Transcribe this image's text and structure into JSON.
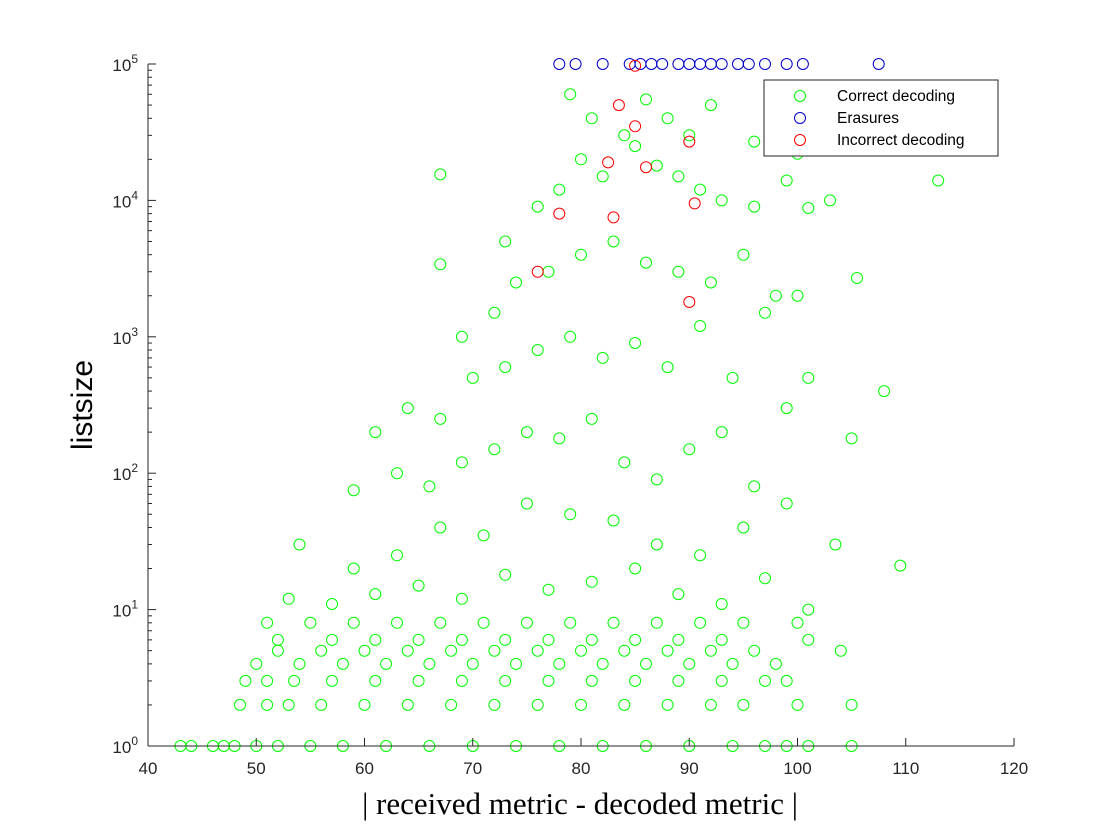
{
  "chart_data": {
    "type": "scatter",
    "title": "",
    "xlabel": "| received metric - decoded metric |",
    "ylabel": "listsize",
    "xlim": [
      40,
      120
    ],
    "ylim": [
      1,
      100000
    ],
    "yscale": "log",
    "grid": false,
    "x_ticks": [
      40,
      50,
      60,
      70,
      80,
      90,
      100,
      110,
      120
    ],
    "y_ticks": [
      {
        "base": "10",
        "exp": "0",
        "value": 1
      },
      {
        "base": "10",
        "exp": "1",
        "value": 10
      },
      {
        "base": "10",
        "exp": "2",
        "value": 100
      },
      {
        "base": "10",
        "exp": "3",
        "value": 1000
      },
      {
        "base": "10",
        "exp": "4",
        "value": 10000
      },
      {
        "base": "10",
        "exp": "5",
        "value": 100000
      }
    ],
    "legend_position": "top-right",
    "series": [
      {
        "name": "Correct decoding",
        "color": "#00ff00",
        "marker": "circle-open",
        "points": [
          [
            43,
            1
          ],
          [
            44,
            1
          ],
          [
            46,
            1
          ],
          [
            47,
            1
          ],
          [
            48,
            1
          ],
          [
            50,
            1
          ],
          [
            52,
            1
          ],
          [
            55,
            1
          ],
          [
            58,
            1
          ],
          [
            62,
            1
          ],
          [
            66,
            1
          ],
          [
            70,
            1
          ],
          [
            74,
            1
          ],
          [
            78,
            1
          ],
          [
            82,
            1
          ],
          [
            86,
            1
          ],
          [
            90,
            1
          ],
          [
            94,
            1
          ],
          [
            97,
            1
          ],
          [
            99,
            1
          ],
          [
            101,
            1
          ],
          [
            105,
            1
          ],
          [
            48.5,
            2
          ],
          [
            51,
            2
          ],
          [
            53,
            2
          ],
          [
            56,
            2
          ],
          [
            60,
            2
          ],
          [
            64,
            2
          ],
          [
            68,
            2
          ],
          [
            72,
            2
          ],
          [
            76,
            2
          ],
          [
            80,
            2
          ],
          [
            84,
            2
          ],
          [
            88,
            2
          ],
          [
            92,
            2
          ],
          [
            95,
            2
          ],
          [
            100,
            2
          ],
          [
            105,
            2
          ],
          [
            49,
            3
          ],
          [
            51,
            3
          ],
          [
            53.5,
            3
          ],
          [
            57,
            3
          ],
          [
            61,
            3
          ],
          [
            65,
            3
          ],
          [
            69,
            3
          ],
          [
            73,
            3
          ],
          [
            77,
            3
          ],
          [
            81,
            3
          ],
          [
            85,
            3
          ],
          [
            89,
            3
          ],
          [
            93,
            3
          ],
          [
            97,
            3
          ],
          [
            99,
            3
          ],
          [
            50,
            4
          ],
          [
            54,
            4
          ],
          [
            58,
            4
          ],
          [
            62,
            4
          ],
          [
            66,
            4
          ],
          [
            70,
            4
          ],
          [
            74,
            4
          ],
          [
            78,
            4
          ],
          [
            82,
            4
          ],
          [
            86,
            4
          ],
          [
            90,
            4
          ],
          [
            94,
            4
          ],
          [
            98,
            4
          ],
          [
            52,
            5
          ],
          [
            56,
            5
          ],
          [
            60,
            5
          ],
          [
            64,
            5
          ],
          [
            68,
            5
          ],
          [
            72,
            5
          ],
          [
            76,
            5
          ],
          [
            80,
            5
          ],
          [
            84,
            5
          ],
          [
            88,
            5
          ],
          [
            92,
            5
          ],
          [
            96,
            5
          ],
          [
            104,
            5
          ],
          [
            52,
            6
          ],
          [
            57,
            6
          ],
          [
            61,
            6
          ],
          [
            65,
            6
          ],
          [
            69,
            6
          ],
          [
            73,
            6
          ],
          [
            77,
            6
          ],
          [
            81,
            6
          ],
          [
            85,
            6
          ],
          [
            89,
            6
          ],
          [
            93,
            6
          ],
          [
            101,
            6
          ],
          [
            51,
            8
          ],
          [
            55,
            8
          ],
          [
            59,
            8
          ],
          [
            63,
            8
          ],
          [
            67,
            8
          ],
          [
            71,
            8
          ],
          [
            75,
            8
          ],
          [
            79,
            8
          ],
          [
            83,
            8
          ],
          [
            87,
            8
          ],
          [
            91,
            8
          ],
          [
            95,
            8
          ],
          [
            100,
            8
          ],
          [
            53,
            12
          ],
          [
            57,
            11
          ],
          [
            61,
            13
          ],
          [
            65,
            15
          ],
          [
            69,
            12
          ],
          [
            73,
            18
          ],
          [
            77,
            14
          ],
          [
            81,
            16
          ],
          [
            85,
            20
          ],
          [
            89,
            13
          ],
          [
            93,
            11
          ],
          [
            97,
            17
          ],
          [
            101,
            10
          ],
          [
            54,
            30
          ],
          [
            59,
            20
          ],
          [
            63,
            25
          ],
          [
            67,
            40
          ],
          [
            71,
            35
          ],
          [
            75,
            60
          ],
          [
            79,
            50
          ],
          [
            83,
            45
          ],
          [
            87,
            30
          ],
          [
            91,
            25
          ],
          [
            95,
            40
          ],
          [
            99,
            60
          ],
          [
            103.5,
            30
          ],
          [
            109.5,
            21
          ],
          [
            59,
            75
          ],
          [
            63,
            100
          ],
          [
            66,
            80
          ],
          [
            69,
            120
          ],
          [
            72,
            150
          ],
          [
            75,
            200
          ],
          [
            78,
            180
          ],
          [
            81,
            250
          ],
          [
            84,
            120
          ],
          [
            87,
            90
          ],
          [
            90,
            150
          ],
          [
            93,
            200
          ],
          [
            96,
            80
          ],
          [
            99,
            300
          ],
          [
            105,
            180
          ],
          [
            61,
            200
          ],
          [
            64,
            300
          ],
          [
            67,
            250
          ],
          [
            70,
            500
          ],
          [
            73,
            600
          ],
          [
            76,
            800
          ],
          [
            79,
            1000
          ],
          [
            82,
            700
          ],
          [
            85,
            900
          ],
          [
            88,
            600
          ],
          [
            91,
            1200
          ],
          [
            94,
            500
          ],
          [
            97,
            1500
          ],
          [
            101,
            500
          ],
          [
            108,
            400
          ],
          [
            67,
            3400
          ],
          [
            69,
            1000
          ],
          [
            72,
            1500
          ],
          [
            74,
            2500
          ],
          [
            77,
            3000
          ],
          [
            80,
            4000
          ],
          [
            83,
            5000
          ],
          [
            86,
            3500
          ],
          [
            89,
            3000
          ],
          [
            92,
            2500
          ],
          [
            95,
            4000
          ],
          [
            98,
            2000
          ],
          [
            100,
            2000
          ],
          [
            105.5,
            2700
          ],
          [
            67,
            15500
          ],
          [
            73,
            5000
          ],
          [
            76,
            9000
          ],
          [
            78,
            12000
          ],
          [
            80,
            20000
          ],
          [
            82,
            15000
          ],
          [
            85,
            25000
          ],
          [
            87,
            18000
          ],
          [
            89,
            15000
          ],
          [
            91,
            12000
          ],
          [
            93,
            10000
          ],
          [
            96,
            9000
          ],
          [
            99,
            14000
          ],
          [
            101,
            8800
          ],
          [
            103,
            10000
          ],
          [
            79,
            60000
          ],
          [
            81,
            40000
          ],
          [
            84,
            30000
          ],
          [
            86,
            55000
          ],
          [
            88,
            40000
          ],
          [
            90,
            30000
          ],
          [
            92,
            50000
          ],
          [
            96,
            27000
          ],
          [
            100,
            22000
          ],
          [
            113,
            14000
          ]
        ]
      },
      {
        "name": "Erasures",
        "color": "#0000cc",
        "marker": "circle-open",
        "points": [
          [
            78,
            100000
          ],
          [
            79.5,
            100000
          ],
          [
            82,
            100000
          ],
          [
            84.5,
            100000
          ],
          [
            85.5,
            100000
          ],
          [
            86.5,
            100000
          ],
          [
            87.5,
            100000
          ],
          [
            89,
            100000
          ],
          [
            90,
            100000
          ],
          [
            91,
            100000
          ],
          [
            92,
            100000
          ],
          [
            93,
            100000
          ],
          [
            94.5,
            100000
          ],
          [
            95.5,
            100000
          ],
          [
            97,
            100000
          ],
          [
            99,
            100000
          ],
          [
            100.5,
            100000
          ],
          [
            107.5,
            100000
          ]
        ]
      },
      {
        "name": "Incorrect decoding",
        "color": "#ff0000",
        "marker": "circle-open",
        "points": [
          [
            85,
            97000
          ],
          [
            83.5,
            50000
          ],
          [
            85,
            35000
          ],
          [
            90,
            27000
          ],
          [
            82.5,
            19000
          ],
          [
            86,
            17500
          ],
          [
            78,
            8000
          ],
          [
            83,
            7500
          ],
          [
            90.5,
            9500
          ],
          [
            76,
            3000
          ],
          [
            90,
            1800
          ]
        ]
      }
    ]
  }
}
